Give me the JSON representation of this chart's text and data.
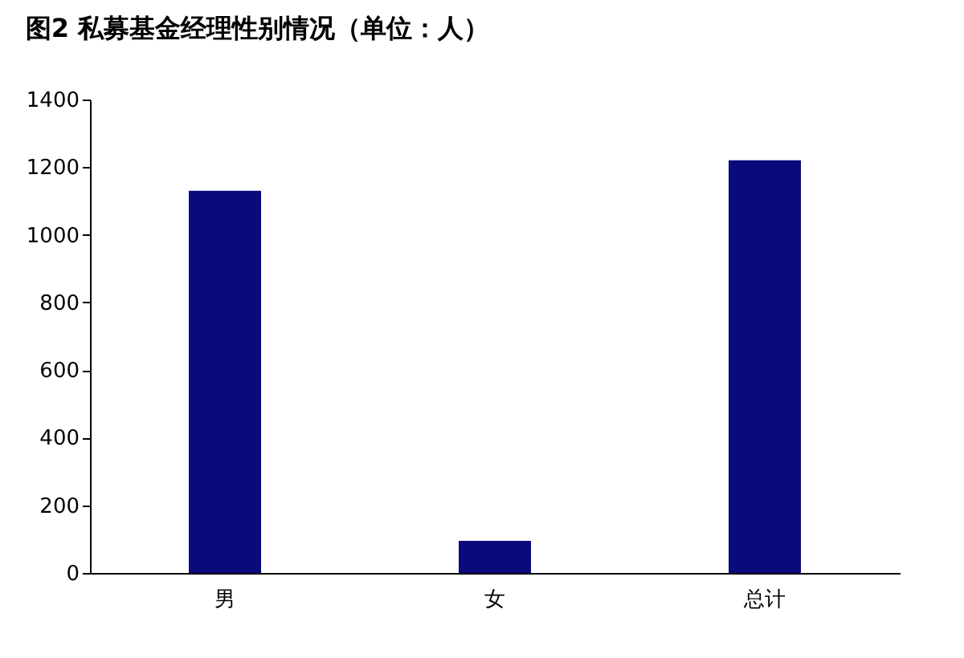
{
  "chart_data": {
    "type": "bar",
    "title": "图2  私募基金经理性别情况（单位：人）",
    "categories": [
      "男",
      "女",
      "总计"
    ],
    "series": [
      {
        "color": "#0a0a7a",
        "values": [
          1130,
          95,
          1220
        ]
      }
    ],
    "ylim": [
      0,
      1400
    ],
    "yticks": [
      0,
      200,
      400,
      600,
      800,
      1000,
      1200,
      1400
    ],
    "grid": false,
    "legend": false
  }
}
